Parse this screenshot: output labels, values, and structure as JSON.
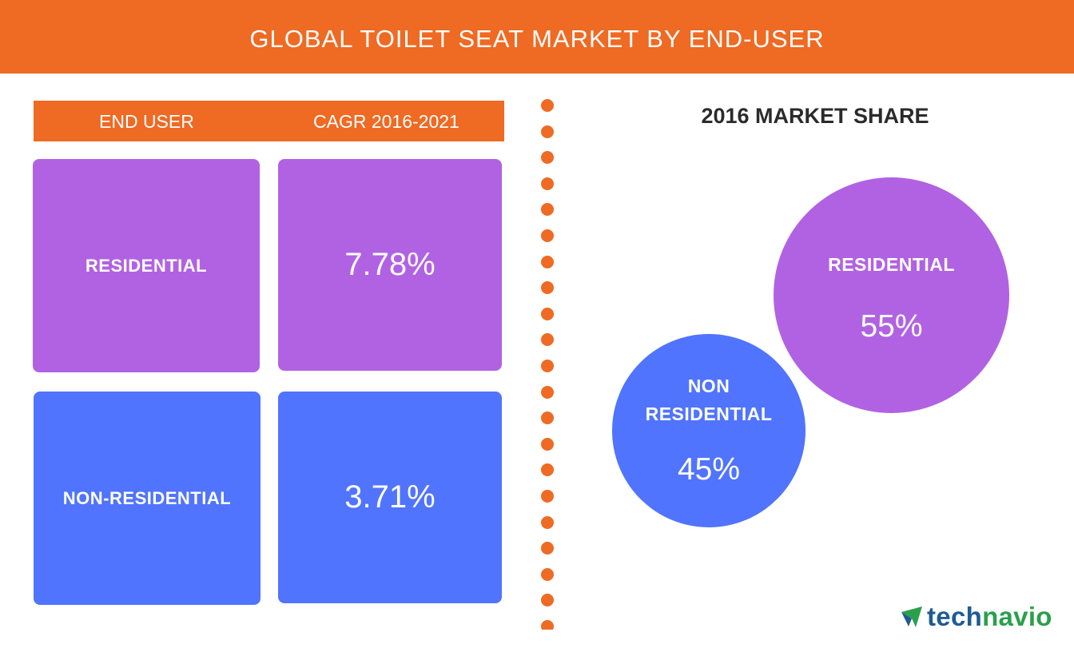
{
  "title": "GLOBAL TOILET SEAT MARKET BY END-USER",
  "colors": {
    "brand_orange": "#ef6a23",
    "residential": "#b162e3",
    "non_residential": "#5074fd",
    "logo_blue": "#1f5b93",
    "logo_green": "#2aa04b"
  },
  "table": {
    "header_user": "END USER",
    "header_cagr": "CAGR 2016-2021"
  },
  "market_share": {
    "title": "2016 MARKET SHARE"
  },
  "logo": {
    "part1": "tech",
    "part2": "navio",
    "icon": "technavio-arrow-icon"
  },
  "chart_data": [
    {
      "type": "table",
      "columns": [
        "END USER",
        "CAGR 2016-2021"
      ],
      "categories": [
        "RESIDENTIAL",
        "NON-RESIDENTIAL"
      ],
      "values": [
        7.78,
        3.71
      ],
      "labels": [
        "7.78%",
        "3.71%"
      ],
      "unit": "%"
    },
    {
      "type": "pie",
      "title": "2016 MARKET SHARE",
      "categories": [
        "RESIDENTIAL",
        "NON\nRESIDENTIAL"
      ],
      "values": [
        55,
        45
      ],
      "labels": [
        "55%",
        "45%"
      ],
      "unit": "%"
    }
  ]
}
